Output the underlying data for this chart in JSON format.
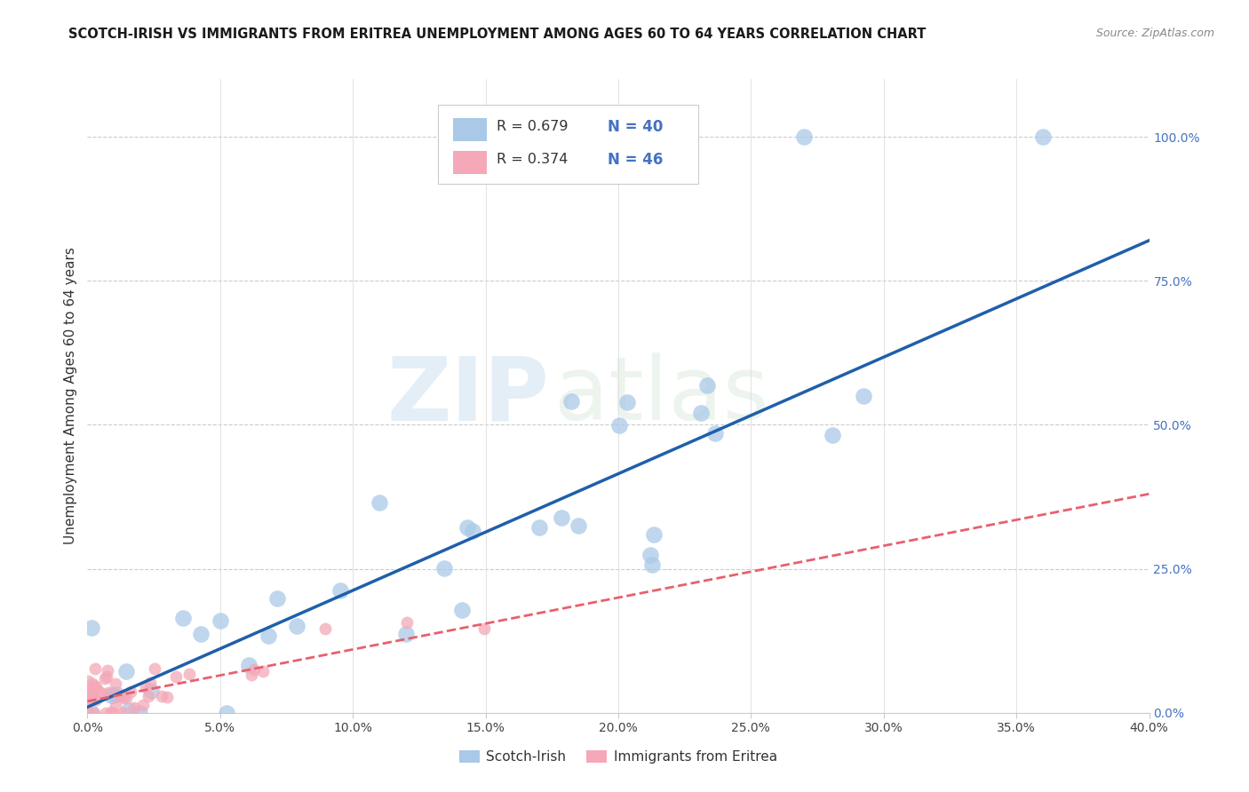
{
  "title": "SCOTCH-IRISH VS IMMIGRANTS FROM ERITREA UNEMPLOYMENT AMONG AGES 60 TO 64 YEARS CORRELATION CHART",
  "source": "Source: ZipAtlas.com",
  "ylabel": "Unemployment Among Ages 60 to 64 years",
  "xlim": [
    0.0,
    0.4
  ],
  "ylim": [
    0.0,
    1.1
  ],
  "xticks": [
    0.0,
    0.05,
    0.1,
    0.15,
    0.2,
    0.25,
    0.3,
    0.35,
    0.4
  ],
  "ytick_right_vals": [
    0.0,
    0.25,
    0.5,
    0.75,
    1.0
  ],
  "watermark_zip": "ZIP",
  "watermark_atlas": "atlas",
  "legend_r1": "R = 0.679",
  "legend_n1": "N = 40",
  "legend_r2": "R = 0.374",
  "legend_n2": "N = 46",
  "color_blue": "#aac9e8",
  "color_pink": "#f4a8b8",
  "color_blue_line": "#1f5faa",
  "color_pink_line": "#e8606e",
  "color_axis_label": "#4472c4",
  "label_scotch": "Scotch-Irish",
  "label_eritrea": "Immigrants from Eritrea",
  "si_line_x0": 0.0,
  "si_line_y0": 0.01,
  "si_line_x1": 0.4,
  "si_line_y1": 0.82,
  "er_line_x0": 0.0,
  "er_line_y0": 0.02,
  "er_line_x1": 0.4,
  "er_line_y1": 0.38
}
